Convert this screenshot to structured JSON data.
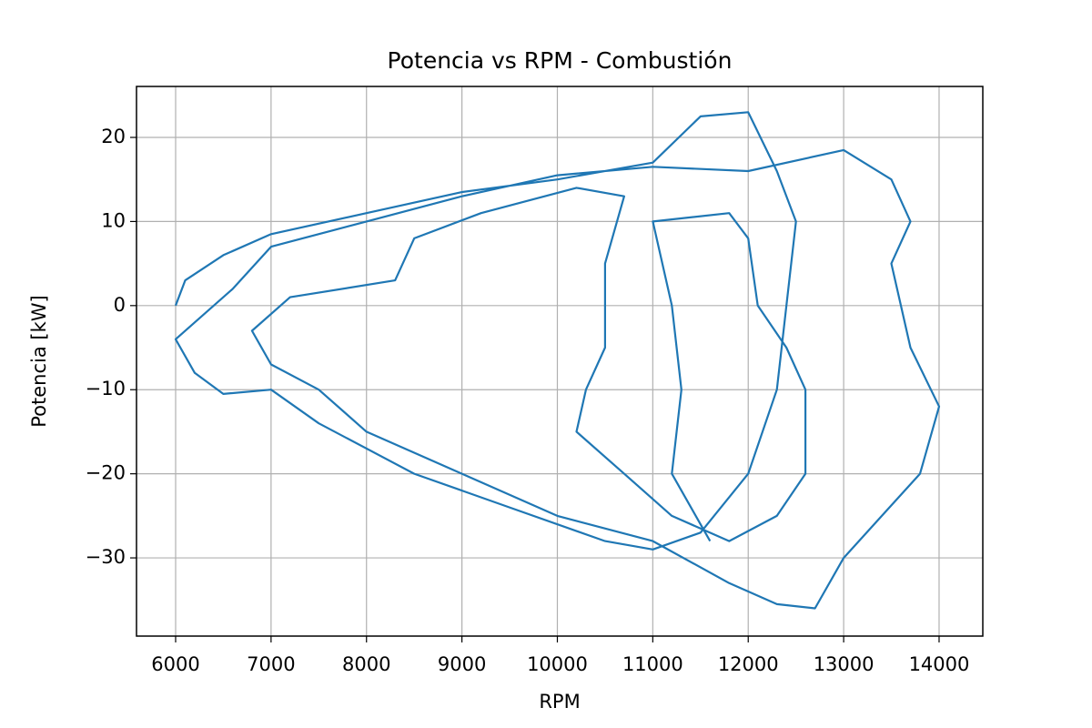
{
  "chart_data": {
    "type": "line",
    "title": "Potencia vs RPM - Combustión",
    "xlabel": "RPM",
    "ylabel": "Potencia [kW]",
    "x": [
      6000,
      6100,
      6500,
      7000,
      8000,
      9000,
      10000,
      11000,
      11500,
      12000,
      12300,
      12500,
      12400,
      12300,
      12000,
      11500,
      11000,
      10500,
      9500,
      8500,
      7500,
      7000,
      6500,
      6200,
      6000,
      6600,
      7000,
      8000,
      9000,
      10000,
      11000,
      12000,
      13000,
      13500,
      13700,
      13500,
      13600,
      13700,
      14000,
      13800,
      13400,
      13000,
      12700,
      12300,
      11800,
      11000,
      10000,
      9000,
      8000,
      7500,
      7000,
      6800,
      7200,
      8300,
      8500,
      9200,
      10200,
      10700,
      10500,
      10500,
      10300,
      10200,
      10700,
      11200,
      11800,
      12300,
      12600,
      12600,
      12400,
      12100,
      12000,
      11800,
      11000,
      11200,
      11300,
      11200,
      11600
    ],
    "series": [
      {
        "name": "Potencia",
        "color": "#1f77b4",
        "values": [
          0,
          3,
          6,
          8.5,
          11,
          13.5,
          15,
          17,
          22.5,
          23,
          16,
          10,
          0,
          -10,
          -20,
          -27,
          -29,
          -28,
          -24,
          -20,
          -14,
          -10,
          -10.5,
          -8,
          -4,
          2,
          7,
          10,
          13,
          15.5,
          16.5,
          16,
          18.5,
          15,
          10,
          5,
          0,
          -5,
          -12,
          -20,
          -25,
          -30,
          -36,
          -35.5,
          -33,
          -28,
          -25,
          -20,
          -15,
          -10,
          -7,
          -3,
          1,
          3,
          8,
          11,
          14,
          13,
          5,
          -5,
          -10,
          -15,
          -20,
          -25,
          -28,
          -25,
          -20,
          -10,
          -5,
          0,
          8,
          11,
          10,
          0,
          -10,
          -20,
          -28
        ]
      }
    ],
    "xlim": [
      5590,
      14458
    ],
    "ylim": [
      -39.3,
      26.06
    ],
    "xticks": [
      6000,
      7000,
      8000,
      9000,
      10000,
      11000,
      12000,
      13000,
      14000
    ],
    "yticks": [
      {
        "value": -30,
        "label": "−30"
      },
      {
        "value": -20,
        "label": "−20"
      },
      {
        "value": -10,
        "label": "−10"
      },
      0,
      10,
      20
    ],
    "grid": true
  }
}
